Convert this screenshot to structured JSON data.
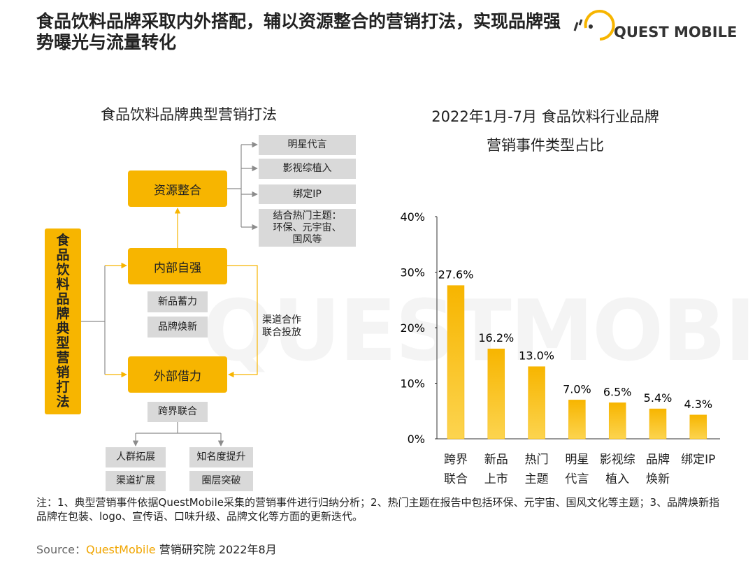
{
  "header": {
    "title": "食品饮料品牌采取内外搭配，辅以资源整合的营销打法，实现品牌强势曝光与流量转化",
    "logo": "QUEST MOBILE"
  },
  "watermark": "QUESTMOBILE",
  "diagram": {
    "title": "食品饮料品牌典型营销打法",
    "root": "食品饮料品牌典型营销打法",
    "resource": {
      "label": "资源整合",
      "items": [
        "明星代言",
        "影视综植入",
        "绑定IP",
        "结合热门主题：\n环保、元宇宙、\n国风等"
      ]
    },
    "internal": {
      "label": "内部自强",
      "items": [
        "新品蓄力",
        "品牌焕新"
      ]
    },
    "external": {
      "label": "外部借力",
      "items": [
        "跨界联合"
      ],
      "outcomes": [
        "人群拓展",
        "知名度提升",
        "渠道扩展",
        "圈层突破"
      ]
    },
    "side_note": "渠道合作\n联合投放"
  },
  "chart_data": {
    "type": "bar",
    "title": "2022年1月-7月 食品饮料行业品牌\n营销事件类型占比",
    "categories": [
      "跨界\n联合",
      "新品\n上市",
      "热门\n主题",
      "明星\n代言",
      "影视综\n植入",
      "品牌\n焕新",
      "绑定IP"
    ],
    "values": [
      27.6,
      16.2,
      13.0,
      7.0,
      6.5,
      5.4,
      4.3
    ],
    "value_labels": [
      "27.6%",
      "16.2%",
      "13.0%",
      "7.0%",
      "6.5%",
      "5.4%",
      "4.3%"
    ],
    "color": "#f7b500",
    "ylim": [
      0,
      40
    ],
    "yticks": [
      {
        "value": 0,
        "label": "0%"
      },
      {
        "value": 10,
        "label": "10%"
      },
      {
        "value": 20,
        "label": "20%"
      },
      {
        "value": 30,
        "label": "30%"
      },
      {
        "value": 40,
        "label": "40%"
      }
    ],
    "grid": false
  },
  "note": "注：1、典型营销事件依据QuestMobile采集的营销事件进行归纳分析；2、热门主题在报告中包括环保、元宇宙、国风文化等主题；3、品牌焕新指品牌在包装、logo、宣传语、口味升级、品牌文化等方面的更新迭代。",
  "source": {
    "prefix": "Source：",
    "brand": "QuestMobile",
    "suffix": " 营销研究院 2022年8月"
  }
}
